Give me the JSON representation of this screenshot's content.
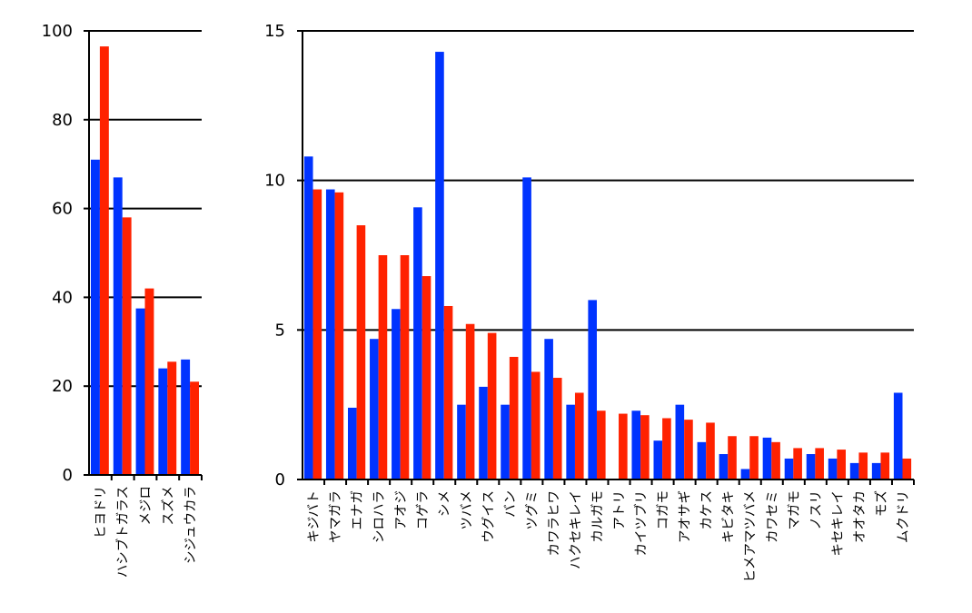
{
  "colors": {
    "series_a": "#0033ff",
    "series_b": "#ff2200",
    "grid": "#000000",
    "axis": "#000000"
  },
  "chart_data": [
    {
      "type": "bar",
      "ylim": [
        0,
        100
      ],
      "yticks": [
        0,
        20,
        40,
        60,
        80,
        100
      ],
      "grid": true,
      "categories": [
        "ヒヨドリ",
        "ハシブトガラス",
        "メジロ",
        "スズメ",
        "シジュウカラ"
      ],
      "series": [
        {
          "values": [
            71,
            67,
            37.5,
            24,
            26
          ]
        },
        {
          "values": [
            96.5,
            58,
            42,
            25.5,
            21
          ]
        }
      ]
    },
    {
      "type": "bar",
      "ylim": [
        0,
        15
      ],
      "yticks": [
        0,
        5,
        10,
        15
      ],
      "grid": true,
      "categories": [
        "キジバト",
        "ヤマガラ",
        "エナガ",
        "シロハラ",
        "アオジ",
        "コゲラ",
        "シメ",
        "ツバメ",
        "ウグイス",
        "バン",
        "ツグミ",
        "カワラヒワ",
        "ハクセキレイ",
        "カルガモ",
        "アトリ",
        "カイツブリ",
        "コガモ",
        "アオサギ",
        "カケス",
        "キビタキ",
        "ヒメアマツバメ",
        "カワセミ",
        "マガモ",
        "ノスリ",
        "キセキレイ",
        "オオタカ",
        "モズ",
        "ムクドリ"
      ],
      "series": [
        {
          "values": [
            10.8,
            9.7,
            2.4,
            4.7,
            5.7,
            9.1,
            14.3,
            2.5,
            3.1,
            2.5,
            10.1,
            4.7,
            2.5,
            6.0,
            0,
            2.3,
            1.3,
            2.5,
            1.25,
            0.85,
            0.35,
            1.4,
            0.7,
            0.85,
            0.7,
            0.55,
            0.55,
            2.9
          ]
        },
        {
          "values": [
            9.7,
            9.6,
            8.5,
            7.5,
            7.5,
            6.8,
            5.8,
            5.2,
            4.9,
            4.1,
            3.6,
            3.4,
            2.9,
            2.3,
            2.2,
            2.15,
            2.05,
            2.0,
            1.9,
            1.45,
            1.45,
            1.25,
            1.05,
            1.05,
            1.0,
            0.9,
            0.9,
            0.7
          ]
        }
      ]
    }
  ]
}
